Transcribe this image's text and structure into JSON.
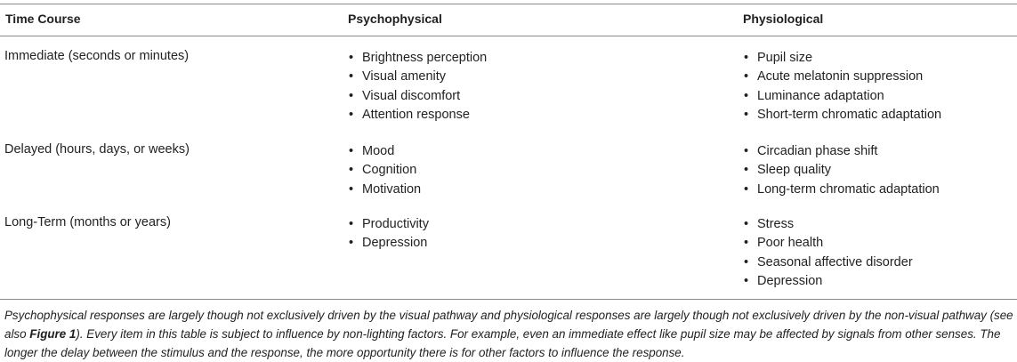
{
  "table": {
    "headers": {
      "time_course": "Time Course",
      "psychophysical": "Psychophysical",
      "physiological": "Physiological"
    },
    "rows": [
      {
        "time": "Immediate (seconds or minutes)",
        "psychophysical": [
          "Brightness perception",
          "Visual amenity",
          "Visual discomfort",
          "Attention response"
        ],
        "physiological": [
          "Pupil size",
          "Acute melatonin suppression",
          "Luminance adaptation",
          "Short-term chromatic adaptation"
        ]
      },
      {
        "time": "Delayed (hours, days, or weeks)",
        "psychophysical": [
          "Mood",
          "Cognition",
          "Motivation"
        ],
        "physiological": [
          "Circadian phase shift",
          "Sleep quality",
          "Long-term chromatic adaptation"
        ]
      },
      {
        "time": "Long-Term (months or years)",
        "psychophysical": [
          "Productivity",
          "Depression"
        ],
        "physiological": [
          "Stress",
          "Poor health",
          "Seasonal affective disorder",
          "Depression"
        ]
      }
    ],
    "bullet": "•"
  },
  "footnote": {
    "part1": "Psychophysical responses are largely though not exclusively driven by the visual pathway and physiological responses are largely though not exclusively driven by the non-visual pathway (see also ",
    "figure_ref": "Figure 1",
    "part2": "). Every item in this table is subject to influence by non-lighting factors. For example, even an immediate effect like pupil size may be affected by signals from other senses. The longer the delay between the stimulus and the response, the more opportunity there is for other factors to influence the response."
  }
}
